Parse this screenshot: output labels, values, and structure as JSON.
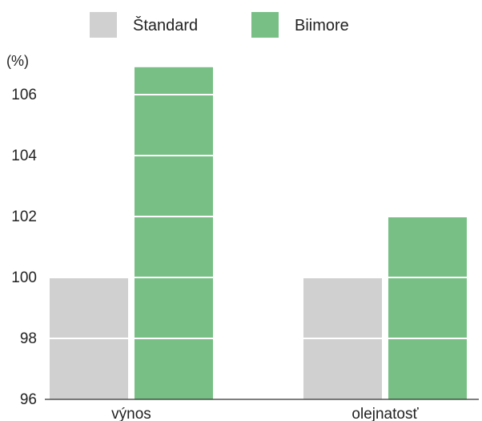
{
  "chart_data": {
    "type": "bar",
    "categories": [
      "výnos",
      "olejnatosť"
    ],
    "series": [
      {
        "name": "Štandard",
        "values": [
          100,
          100
        ],
        "color": "#d0d0d0"
      },
      {
        "name": "Biimore",
        "values": [
          106.9,
          102
        ],
        "color": "#78bf85"
      }
    ],
    "title": "",
    "xlabel": "",
    "ylabel": "(%)",
    "ylim": [
      96,
      107
    ],
    "yticks": [
      96,
      98,
      100,
      102,
      104,
      106
    ],
    "grid": true,
    "legend_position": "top"
  }
}
